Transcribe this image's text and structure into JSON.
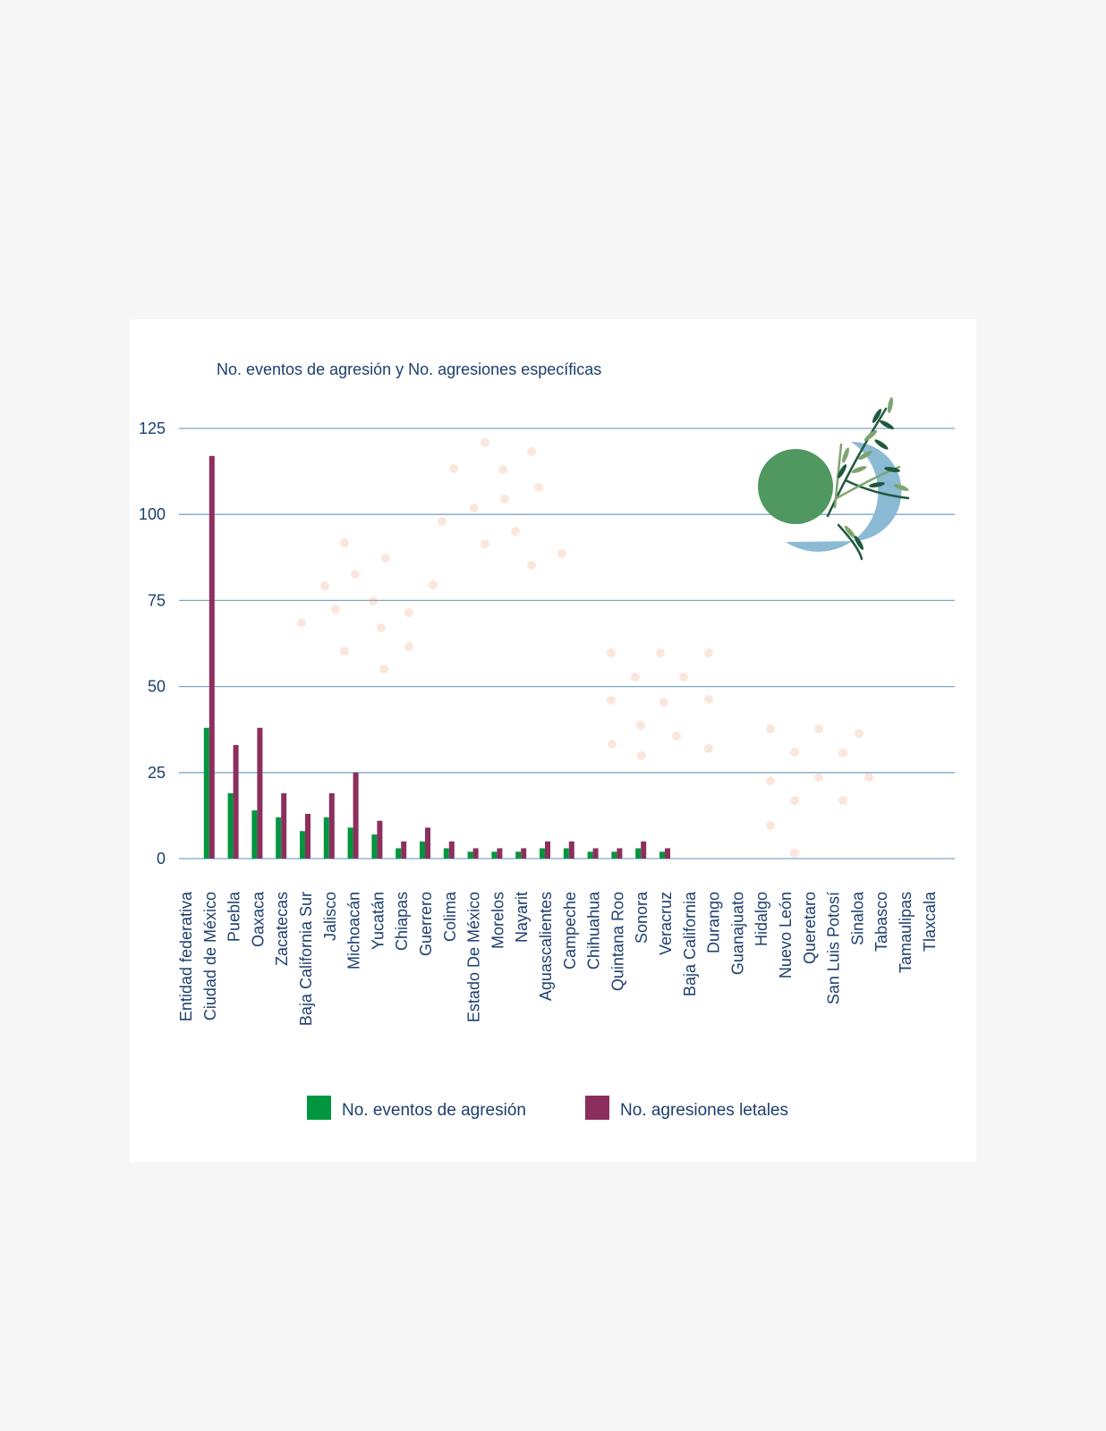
{
  "chart_data": {
    "type": "bar",
    "title": "No. eventos de agresión y No. agresiones específicas",
    "xlabel": "Entidad federativa",
    "ylabel": "",
    "ylim": [
      0,
      125
    ],
    "yticks": [
      0,
      25,
      50,
      75,
      100,
      125
    ],
    "grid": true,
    "legend_position": "bottom",
    "categories": [
      "Ciudad de México",
      "Puebla",
      "Oaxaca",
      "Zacatecas",
      "Baja California Sur",
      "Jalisco",
      "Michoacán",
      "Yucatán",
      "Chiapas",
      "Guerrero",
      "Colima",
      "Estado De México",
      "Morelos",
      "Nayarit",
      "Aguascalientes",
      "Campeche",
      "Chihuahua",
      "Quintana Roo",
      "Sonora",
      "Veracruz",
      "Baja California",
      "Durango",
      "Guanajuato",
      "Hidalgo",
      "Nuevo León",
      "Queretaro",
      "San Luis Potosí",
      "Sinaloa",
      "Tabasco",
      "Tamaulipas",
      "Tlaxcala"
    ],
    "series": [
      {
        "name": "No. eventos de agresión",
        "color": "#00963f",
        "values": [
          38,
          19,
          14,
          12,
          8,
          12,
          9,
          7,
          3,
          5,
          3,
          2,
          2,
          2,
          3,
          3,
          2,
          2,
          3,
          2,
          0,
          0,
          0,
          0,
          0,
          0,
          0,
          0,
          0,
          0,
          0
        ]
      },
      {
        "name": "No. agresiones letales",
        "color": "#8c2f5f",
        "values": [
          117,
          33,
          38,
          19,
          13,
          19,
          25,
          11,
          5,
          9,
          5,
          3,
          3,
          3,
          5,
          5,
          3,
          3,
          5,
          3,
          0,
          0,
          0,
          0,
          0,
          0,
          0,
          0,
          0,
          0,
          0
        ]
      }
    ]
  },
  "colors": {
    "grid": "#7fa7c4",
    "text": "#1d3f6e",
    "dots": "#fbe6dc",
    "leaf_dark": "#1f5a3c",
    "leaf_light": "#7fa46e",
    "circle_green": "#4f9860",
    "circle_blue": "#8bbad5"
  }
}
